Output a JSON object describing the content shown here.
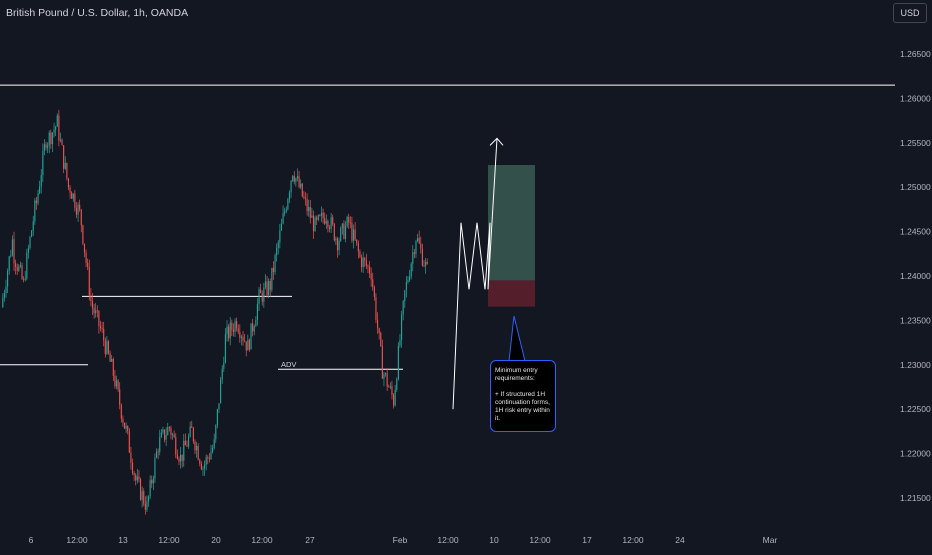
{
  "header": {
    "title": "British Pound / U.S. Dollar, 1h, OANDA",
    "currency_button": "USD"
  },
  "annotations": {
    "adv_label": "ADV",
    "note_text": "Minimum entry requirements:\n\n+ If structured 1H continuation forms, 1H risk entry within it."
  },
  "colors": {
    "background": "#131722",
    "up": "#26a69a",
    "down": "#ef5350",
    "lines": "#ffffff",
    "profit_zone": "#3a5a52",
    "loss_zone": "#5c1f2b",
    "note_border": "#2962ff"
  },
  "chart_data": {
    "type": "candlestick",
    "symbol": "GBPUSD",
    "timeframe": "1h",
    "y_axis": {
      "ticks": [
        "1.26500",
        "1.26000",
        "1.25500",
        "1.25000",
        "1.24500",
        "1.24000",
        "1.23500",
        "1.23000",
        "1.22500",
        "1.22000",
        "1.21500"
      ],
      "range": [
        1.2115,
        1.2695
      ]
    },
    "x_axis": {
      "ticks": [
        "6",
        "12:00",
        "13",
        "12:00",
        "20",
        "12:00",
        "27",
        "Feb",
        "12:00",
        "10",
        "12:00",
        "17",
        "12:00",
        "24",
        "Mar"
      ]
    },
    "price_path": [
      [
        1.2365,
        1.244
      ],
      [
        1.243,
        1.239
      ],
      [
        1.2395,
        1.2475
      ],
      [
        1.247,
        1.2555
      ],
      [
        1.255,
        1.2572
      ],
      [
        1.257,
        1.25
      ],
      [
        1.2505,
        1.247
      ],
      [
        1.2475,
        1.2372
      ],
      [
        1.237,
        1.2335
      ],
      [
        1.2335,
        1.229
      ],
      [
        1.229,
        1.2232
      ],
      [
        1.2235,
        1.217
      ],
      [
        1.217,
        1.214
      ],
      [
        1.214,
        1.221
      ],
      [
        1.221,
        1.223
      ],
      [
        1.223,
        1.2195
      ],
      [
        1.2195,
        1.2225
      ],
      [
        1.2225,
        1.2185
      ],
      [
        1.2185,
        1.221
      ],
      [
        1.221,
        1.233
      ],
      [
        1.233,
        1.235
      ],
      [
        1.235,
        1.232
      ],
      [
        1.232,
        1.2375
      ],
      [
        1.2375,
        1.239
      ],
      [
        1.239,
        1.2455
      ],
      [
        1.2455,
        1.252
      ],
      [
        1.252,
        1.2485
      ],
      [
        1.2485,
        1.2455
      ],
      [
        1.2455,
        1.247
      ],
      [
        1.247,
        1.244
      ],
      [
        1.244,
        1.246
      ],
      [
        1.246,
        1.242
      ],
      [
        1.242,
        1.2405
      ],
      [
        1.2405,
        1.2295
      ],
      [
        1.2295,
        1.226
      ],
      [
        1.226,
        1.238
      ],
      [
        1.238,
        1.2445
      ],
      [
        1.2445,
        1.2405
      ]
    ],
    "horizontal_lines": [
      {
        "price": 1.2615
      },
      {
        "price": 1.23
      },
      {
        "price": 1.2377
      },
      {
        "price": 1.2295
      }
    ],
    "position": {
      "entry": 1.2395,
      "target": 1.2525,
      "stop": 1.237
    },
    "projection": [
      1.225,
      1.246,
      1.2385,
      1.246,
      1.2385,
      1.246,
      1.2385,
      1.2555
    ]
  }
}
